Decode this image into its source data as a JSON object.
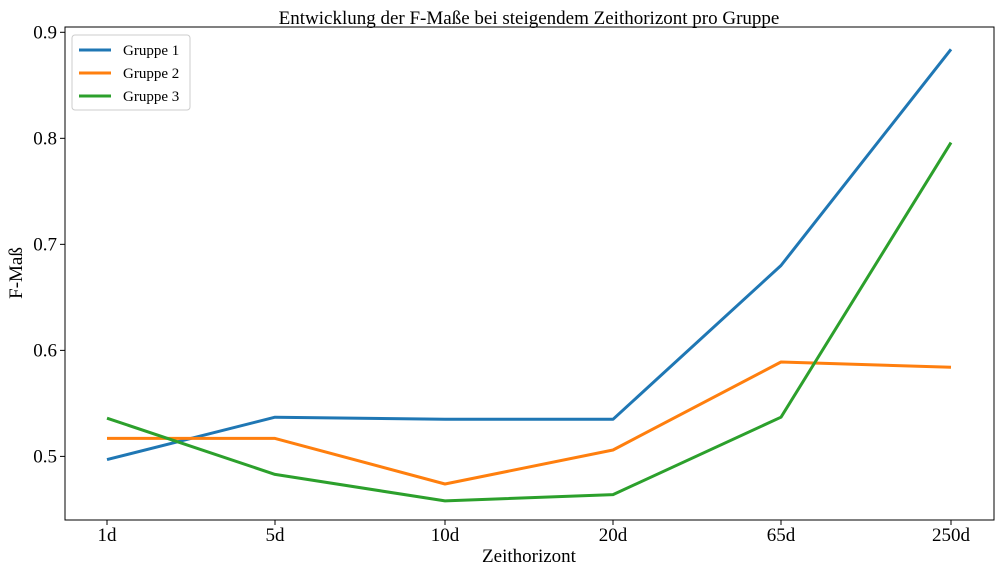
{
  "chart_data": {
    "type": "line",
    "title": "Entwicklung der F-Maße bei steigendem Zeithorizont pro Gruppe",
    "xlabel": "Zeithorizont",
    "ylabel": "F-Maß",
    "categories": [
      "1d",
      "5d",
      "10d",
      "20d",
      "65d",
      "250d"
    ],
    "ylim": [
      0.44,
      0.905
    ],
    "yticks": [
      0.5,
      0.6,
      0.7,
      0.8,
      0.9
    ],
    "ytick_labels": [
      "0.5",
      "0.6",
      "0.7",
      "0.8",
      "0.9"
    ],
    "grid": false,
    "legend_position": "top-left",
    "series": [
      {
        "name": "Gruppe 1",
        "color": "#1f77b4",
        "values": [
          0.497,
          0.537,
          0.535,
          0.535,
          0.68,
          0.884
        ]
      },
      {
        "name": "Gruppe 2",
        "color": "#ff7f0e",
        "values": [
          0.517,
          0.517,
          0.474,
          0.506,
          0.589,
          0.584
        ]
      },
      {
        "name": "Gruppe 3",
        "color": "#2ca02c",
        "values": [
          0.536,
          0.483,
          0.458,
          0.464,
          0.537,
          0.796
        ]
      }
    ]
  }
}
